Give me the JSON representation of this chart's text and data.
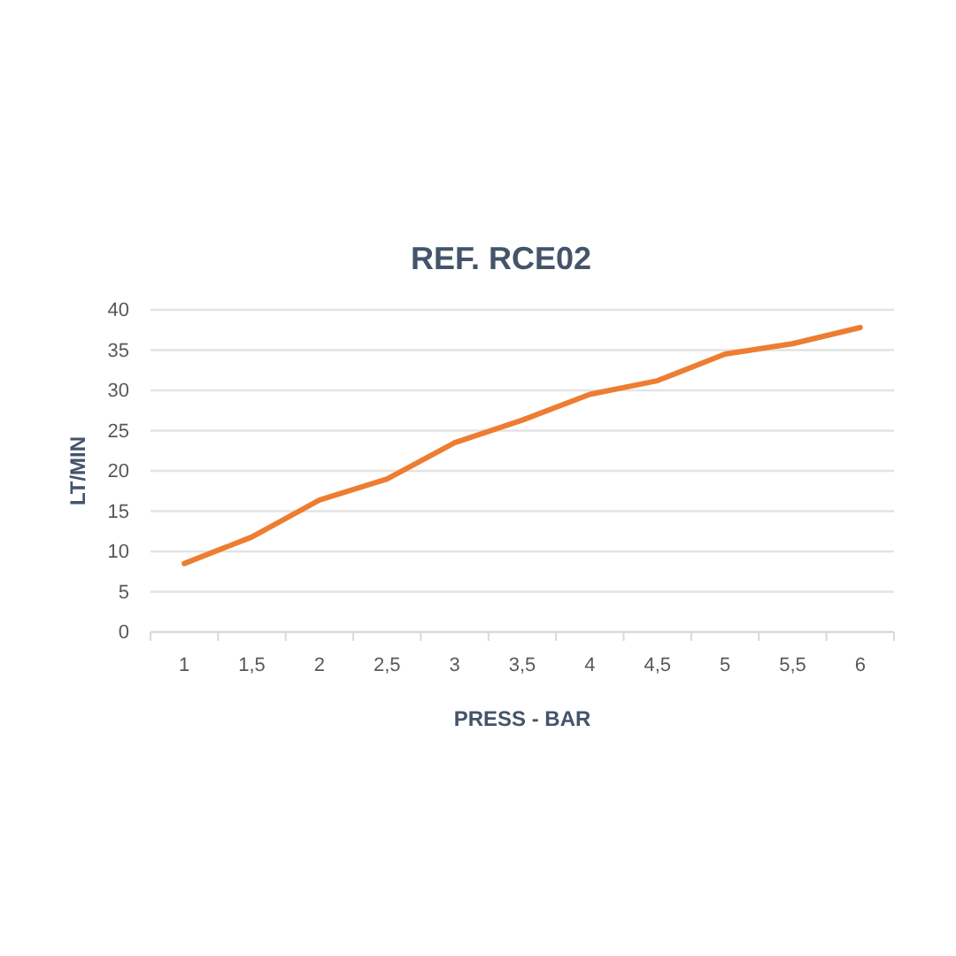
{
  "chart_data": {
    "type": "line",
    "title": "REF. RCE02",
    "xlabel": "PRESS - BAR",
    "ylabel": "LT/MIN",
    "categories": [
      "1",
      "1,5",
      "2",
      "2,5",
      "3",
      "3,5",
      "4",
      "4,5",
      "5",
      "5,5",
      "6"
    ],
    "series": [
      {
        "color": "#ed7d31",
        "values": [
          8.5,
          11.8,
          16.4,
          19,
          23.5,
          26.3,
          29.5,
          31.2,
          34.5,
          35.8,
          37.8
        ]
      }
    ],
    "ylim": [
      0,
      40
    ],
    "yticks": [
      0,
      5,
      10,
      15,
      20,
      25,
      30,
      35,
      40
    ],
    "grid": "y",
    "marker": "none",
    "line_style": "solid"
  }
}
